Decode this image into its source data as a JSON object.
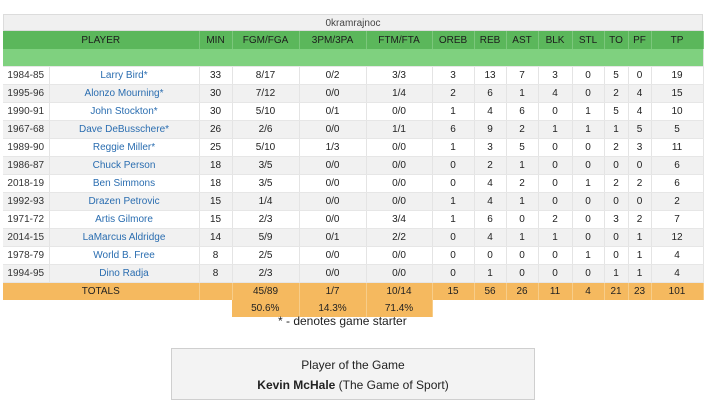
{
  "team_title": "0kramrajnoc",
  "headers": [
    "PLAYER",
    "MIN",
    "FGM/FGA",
    "3PM/3PA",
    "FTM/FTA",
    "OREB",
    "REB",
    "AST",
    "BLK",
    "STL",
    "TO",
    "PF",
    "TP"
  ],
  "players": [
    {
      "season": "1984-85",
      "name": "Larry Bird*",
      "min": "33",
      "fg": "8/17",
      "tp3": "0/2",
      "ft": "3/3",
      "oreb": "3",
      "reb": "13",
      "ast": "7",
      "blk": "3",
      "stl": "0",
      "to": "5",
      "pf": "0",
      "tp": "19"
    },
    {
      "season": "1995-96",
      "name": "Alonzo Mourning*",
      "min": "30",
      "fg": "7/12",
      "tp3": "0/0",
      "ft": "1/4",
      "oreb": "2",
      "reb": "6",
      "ast": "1",
      "blk": "4",
      "stl": "0",
      "to": "2",
      "pf": "4",
      "tp": "15"
    },
    {
      "season": "1990-91",
      "name": "John Stockton*",
      "min": "30",
      "fg": "5/10",
      "tp3": "0/1",
      "ft": "0/0",
      "oreb": "1",
      "reb": "4",
      "ast": "6",
      "blk": "0",
      "stl": "1",
      "to": "5",
      "pf": "4",
      "tp": "10"
    },
    {
      "season": "1967-68",
      "name": "Dave DeBusschere*",
      "min": "26",
      "fg": "2/6",
      "tp3": "0/0",
      "ft": "1/1",
      "oreb": "6",
      "reb": "9",
      "ast": "2",
      "blk": "1",
      "stl": "1",
      "to": "1",
      "pf": "5",
      "tp": "5"
    },
    {
      "season": "1989-90",
      "name": "Reggie Miller*",
      "min": "25",
      "fg": "5/10",
      "tp3": "1/3",
      "ft": "0/0",
      "oreb": "1",
      "reb": "3",
      "ast": "5",
      "blk": "0",
      "stl": "0",
      "to": "2",
      "pf": "3",
      "tp": "11"
    },
    {
      "season": "1986-87",
      "name": "Chuck Person",
      "min": "18",
      "fg": "3/5",
      "tp3": "0/0",
      "ft": "0/0",
      "oreb": "0",
      "reb": "2",
      "ast": "1",
      "blk": "0",
      "stl": "0",
      "to": "0",
      "pf": "0",
      "tp": "6"
    },
    {
      "season": "2018-19",
      "name": "Ben Simmons",
      "min": "18",
      "fg": "3/5",
      "tp3": "0/0",
      "ft": "0/0",
      "oreb": "0",
      "reb": "4",
      "ast": "2",
      "blk": "0",
      "stl": "1",
      "to": "2",
      "pf": "2",
      "tp": "6"
    },
    {
      "season": "1992-93",
      "name": "Drazen Petrovic",
      "min": "15",
      "fg": "1/4",
      "tp3": "0/0",
      "ft": "0/0",
      "oreb": "1",
      "reb": "4",
      "ast": "1",
      "blk": "0",
      "stl": "0",
      "to": "0",
      "pf": "0",
      "tp": "2"
    },
    {
      "season": "1971-72",
      "name": "Artis Gilmore",
      "min": "15",
      "fg": "2/3",
      "tp3": "0/0",
      "ft": "3/4",
      "oreb": "1",
      "reb": "6",
      "ast": "0",
      "blk": "2",
      "stl": "0",
      "to": "3",
      "pf": "2",
      "tp": "7"
    },
    {
      "season": "2014-15",
      "name": "LaMarcus Aldridge",
      "min": "14",
      "fg": "5/9",
      "tp3": "0/1",
      "ft": "2/2",
      "oreb": "0",
      "reb": "4",
      "ast": "1",
      "blk": "1",
      "stl": "0",
      "to": "0",
      "pf": "1",
      "tp": "12"
    },
    {
      "season": "1978-79",
      "name": "World B. Free",
      "min": "8",
      "fg": "2/5",
      "tp3": "0/0",
      "ft": "0/0",
      "oreb": "0",
      "reb": "0",
      "ast": "0",
      "blk": "0",
      "stl": "1",
      "to": "0",
      "pf": "1",
      "tp": "4"
    },
    {
      "season": "1994-95",
      "name": "Dino Radja",
      "min": "8",
      "fg": "2/3",
      "tp3": "0/0",
      "ft": "0/0",
      "oreb": "0",
      "reb": "1",
      "ast": "0",
      "blk": "0",
      "stl": "0",
      "to": "1",
      "pf": "1",
      "tp": "4"
    }
  ],
  "totals": {
    "label": "TOTALS",
    "min": "",
    "fg": "45/89",
    "tp3": "1/7",
    "ft": "10/14",
    "oreb": "15",
    "reb": "56",
    "ast": "26",
    "blk": "11",
    "stl": "4",
    "to": "21",
    "pf": "23",
    "tp": "101"
  },
  "percentages": {
    "fg": "50.6%",
    "tp3": "14.3%",
    "ft": "71.4%"
  },
  "starter_note": "* - denotes game starter",
  "potg": {
    "label": "Player of the Game",
    "player": "Kevin McHale",
    "team": " (The Game of Sport)"
  },
  "colors": {
    "header_green": "#5bb75b",
    "totals_orange": "#f5b95f",
    "link_blue": "#2a6db0"
  }
}
